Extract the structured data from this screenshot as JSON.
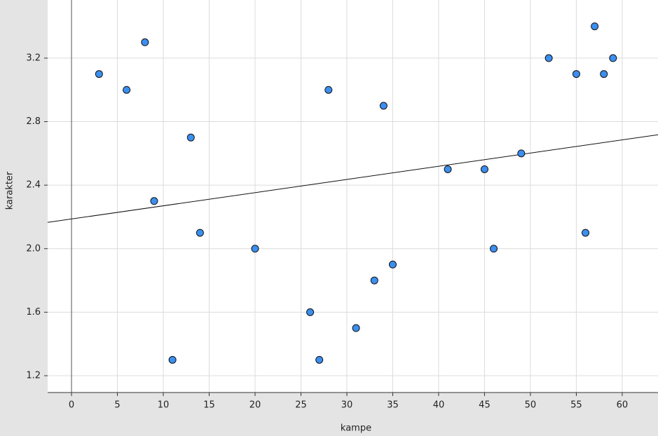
{
  "chart_data": {
    "type": "scatter",
    "x_label": "kampe",
    "y_label": "karakter",
    "x": [
      3,
      6,
      8,
      9,
      11,
      13,
      14,
      20,
      26,
      27,
      28,
      31,
      33,
      34,
      35,
      41,
      45,
      46,
      49,
      52,
      55,
      56,
      57,
      58,
      59
    ],
    "series": [
      {
        "color": "#3b8fef",
        "values": [
          3.1,
          3.0,
          3.3,
          2.3,
          1.3,
          2.7,
          2.1,
          2.0,
          1.6,
          1.3,
          3.0,
          1.5,
          1.8,
          2.9,
          1.9,
          2.5,
          2.5,
          2.0,
          2.6,
          3.2,
          3.1,
          2.1,
          3.4,
          3.1,
          3.2
        ]
      }
    ],
    "trendline": {
      "intercept": 2.187,
      "slope": 0.0083
    },
    "xlim": [
      -2.6,
      63.9
    ],
    "ylim": [
      1.094,
      3.566
    ],
    "xticks": [
      0,
      5,
      10,
      15,
      20,
      25,
      30,
      35,
      40,
      45,
      50,
      55,
      60
    ],
    "yticks": [
      {
        "value": 1.2,
        "label": "1.2"
      },
      {
        "value": 1.6,
        "label": "1.6"
      },
      {
        "value": 2,
        "label": "2.0"
      },
      {
        "value": 2.4,
        "label": "2.4"
      },
      {
        "value": 2.8,
        "label": "2.8"
      },
      {
        "value": 3.2,
        "label": "3.2"
      }
    ],
    "grid": true
  }
}
